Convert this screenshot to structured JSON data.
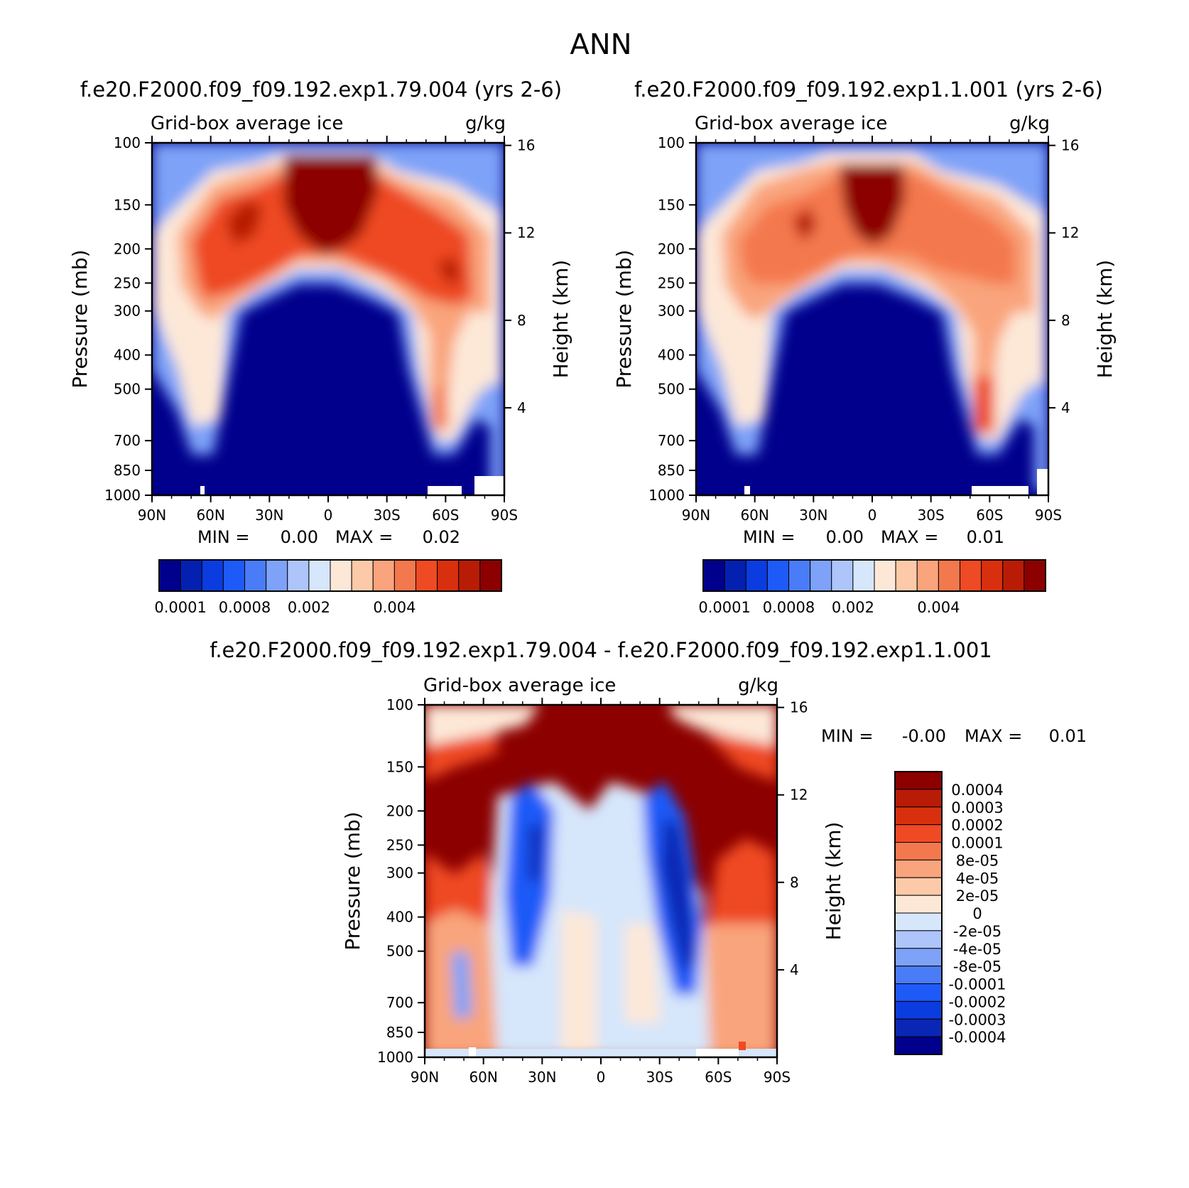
{
  "figure": {
    "title": "ANN",
    "run1_title": "f.e20.F2000.f09_f09.192.exp1.79.004 (yrs 2-6)",
    "run2_title": "f.e20.F2000.f09_f09.192.exp1.1.001 (yrs 2-6)",
    "diff_title": "f.e20.F2000.f09_f09.192.exp1.79.004 - f.e20.F2000.f09_f09.192.exp1.1.001"
  },
  "colors": {
    "run_palette": [
      "#00008c",
      "#0420b0",
      "#0a3ce0",
      "#1e5af8",
      "#4a7cf8",
      "#7da2f8",
      "#adc5fa",
      "#d6e6fb",
      "#fde8d8",
      "#fccaa8",
      "#f9a47c",
      "#f4784e",
      "#ee4a24",
      "#d8300e",
      "#b81c06",
      "#8c0000"
    ],
    "diff_palette": [
      "#00008c",
      "#0a26b4",
      "#0a3ce0",
      "#1e5af8",
      "#4a7cf8",
      "#7da2f8",
      "#adc5fa",
      "#d6e6fb",
      "#fde8d8",
      "#fccaa8",
      "#f9a47c",
      "#f4784e",
      "#ee4a24",
      "#d8300e",
      "#b81c06",
      "#8c0000"
    ]
  },
  "chart_data": [
    {
      "type": "contour",
      "panel": "run1",
      "left_label": "Grid-box average ice",
      "right_label": "g/kg",
      "xlabel": "",
      "ylabel": "Pressure (mb)",
      "ylabel_right": "Height (km)",
      "x_ticks": [
        "90N",
        "60N",
        "30N",
        "0",
        "30S",
        "60S",
        "90S"
      ],
      "x_values": [
        90,
        60,
        30,
        0,
        -30,
        -60,
        -90
      ],
      "y_ticks": [
        "100",
        "150",
        "200",
        "250",
        "300",
        "400",
        "500",
        "700",
        "850",
        "1000"
      ],
      "y_values": [
        100,
        150,
        200,
        250,
        300,
        400,
        500,
        700,
        850,
        1000
      ],
      "height_ticks": [
        "16",
        "12",
        "8",
        "4"
      ],
      "height_values": [
        16,
        12,
        8,
        4
      ],
      "ylim": [
        100,
        1000
      ],
      "min_label": "MIN =",
      "min_value": "0.00",
      "max_label": "MAX =",
      "max_value": "0.02",
      "colorbar_labels": [
        "0.0001",
        "0.0008",
        "0.002",
        "0.004"
      ],
      "colorbar_levels": 16
    },
    {
      "type": "contour",
      "panel": "run2",
      "left_label": "Grid-box average ice",
      "right_label": "g/kg",
      "xlabel": "",
      "ylabel": "Pressure (mb)",
      "ylabel_right": "Height (km)",
      "x_ticks": [
        "90N",
        "60N",
        "30N",
        "0",
        "30S",
        "60S",
        "90S"
      ],
      "x_values": [
        90,
        60,
        30,
        0,
        -30,
        -60,
        -90
      ],
      "y_ticks": [
        "100",
        "150",
        "200",
        "250",
        "300",
        "400",
        "500",
        "700",
        "850",
        "1000"
      ],
      "y_values": [
        100,
        150,
        200,
        250,
        300,
        400,
        500,
        700,
        850,
        1000
      ],
      "height_ticks": [
        "16",
        "12",
        "8",
        "4"
      ],
      "height_values": [
        16,
        12,
        8,
        4
      ],
      "ylim": [
        100,
        1000
      ],
      "min_label": "MIN =",
      "min_value": "0.00",
      "max_label": "MAX =",
      "max_value": "0.01",
      "colorbar_labels": [
        "0.0001",
        "0.0008",
        "0.002",
        "0.004"
      ],
      "colorbar_levels": 16
    },
    {
      "type": "contour",
      "panel": "diff",
      "left_label": "Grid-box average ice",
      "right_label": "g/kg",
      "xlabel": "",
      "ylabel": "Pressure (mb)",
      "ylabel_right": "Height (km)",
      "x_ticks": [
        "90N",
        "60N",
        "30N",
        "0",
        "30S",
        "60S",
        "90S"
      ],
      "x_values": [
        90,
        60,
        30,
        0,
        -30,
        -60,
        -90
      ],
      "y_ticks": [
        "100",
        "150",
        "200",
        "250",
        "300",
        "400",
        "500",
        "700",
        "850",
        "1000"
      ],
      "y_values": [
        100,
        150,
        200,
        250,
        300,
        400,
        500,
        700,
        850,
        1000
      ],
      "height_ticks": [
        "16",
        "12",
        "8",
        "4"
      ],
      "height_values": [
        16,
        12,
        8,
        4
      ],
      "ylim": [
        100,
        1000
      ],
      "min_label": "MIN =",
      "min_value": "-0.00",
      "max_label": "MAX =",
      "max_value": "0.01",
      "colorbar_labels": [
        "0.0004",
        "0.0003",
        "0.0002",
        "0.0001",
        "8e-05",
        "4e-05",
        "2e-05",
        "0",
        "-2e-05",
        "-4e-05",
        "-8e-05",
        "-0.0001",
        "-0.0002",
        "-0.0003",
        "-0.0004"
      ],
      "colorbar_levels": 16
    }
  ]
}
